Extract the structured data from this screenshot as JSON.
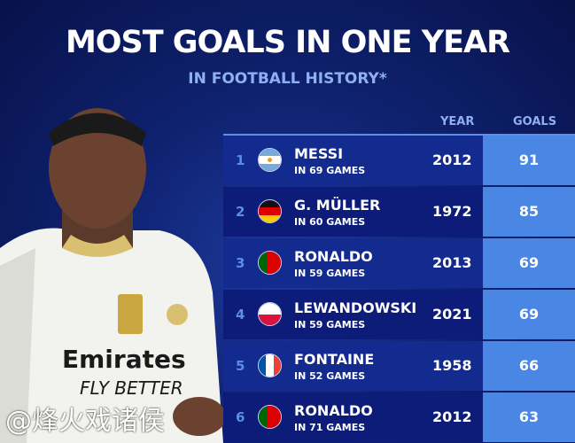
{
  "title": "MOST GOALS IN ONE YEAR",
  "subtitle": "IN FOOTBALL HISTORY*",
  "columns": {
    "year": "YEAR",
    "goals": "GOALS"
  },
  "rows": [
    {
      "rank": "1",
      "name": "MESSI",
      "games": "IN 69 GAMES",
      "year": "2012",
      "goals": "91",
      "flag": "argentina"
    },
    {
      "rank": "2",
      "name": "G. MÜLLER",
      "games": "IN 60 GAMES",
      "year": "1972",
      "goals": "85",
      "flag": "germany"
    },
    {
      "rank": "3",
      "name": "RONALDO",
      "games": "IN 59 GAMES",
      "year": "2013",
      "goals": "69",
      "flag": "portugal"
    },
    {
      "rank": "4",
      "name": "LEWANDOWSKI",
      "games": "IN 59 GAMES",
      "year": "2021",
      "goals": "69",
      "flag": "poland"
    },
    {
      "rank": "5",
      "name": "FONTAINE",
      "games": "IN 52 GAMES",
      "year": "1958",
      "goals": "66",
      "flag": "france"
    },
    {
      "rank": "6",
      "name": "RONALDO",
      "games": "IN 71 GAMES",
      "year": "2012",
      "goals": "63",
      "flag": "portugal"
    }
  ],
  "player_shirt": {
    "sponsor": "Emirates",
    "sponsor_line2": "FLY BETTER"
  },
  "watermark": "@烽火戏诸侯",
  "colors": {
    "background": "#0f2270",
    "accent": "#4a86e4",
    "subtitle": "#8fb0f0"
  }
}
